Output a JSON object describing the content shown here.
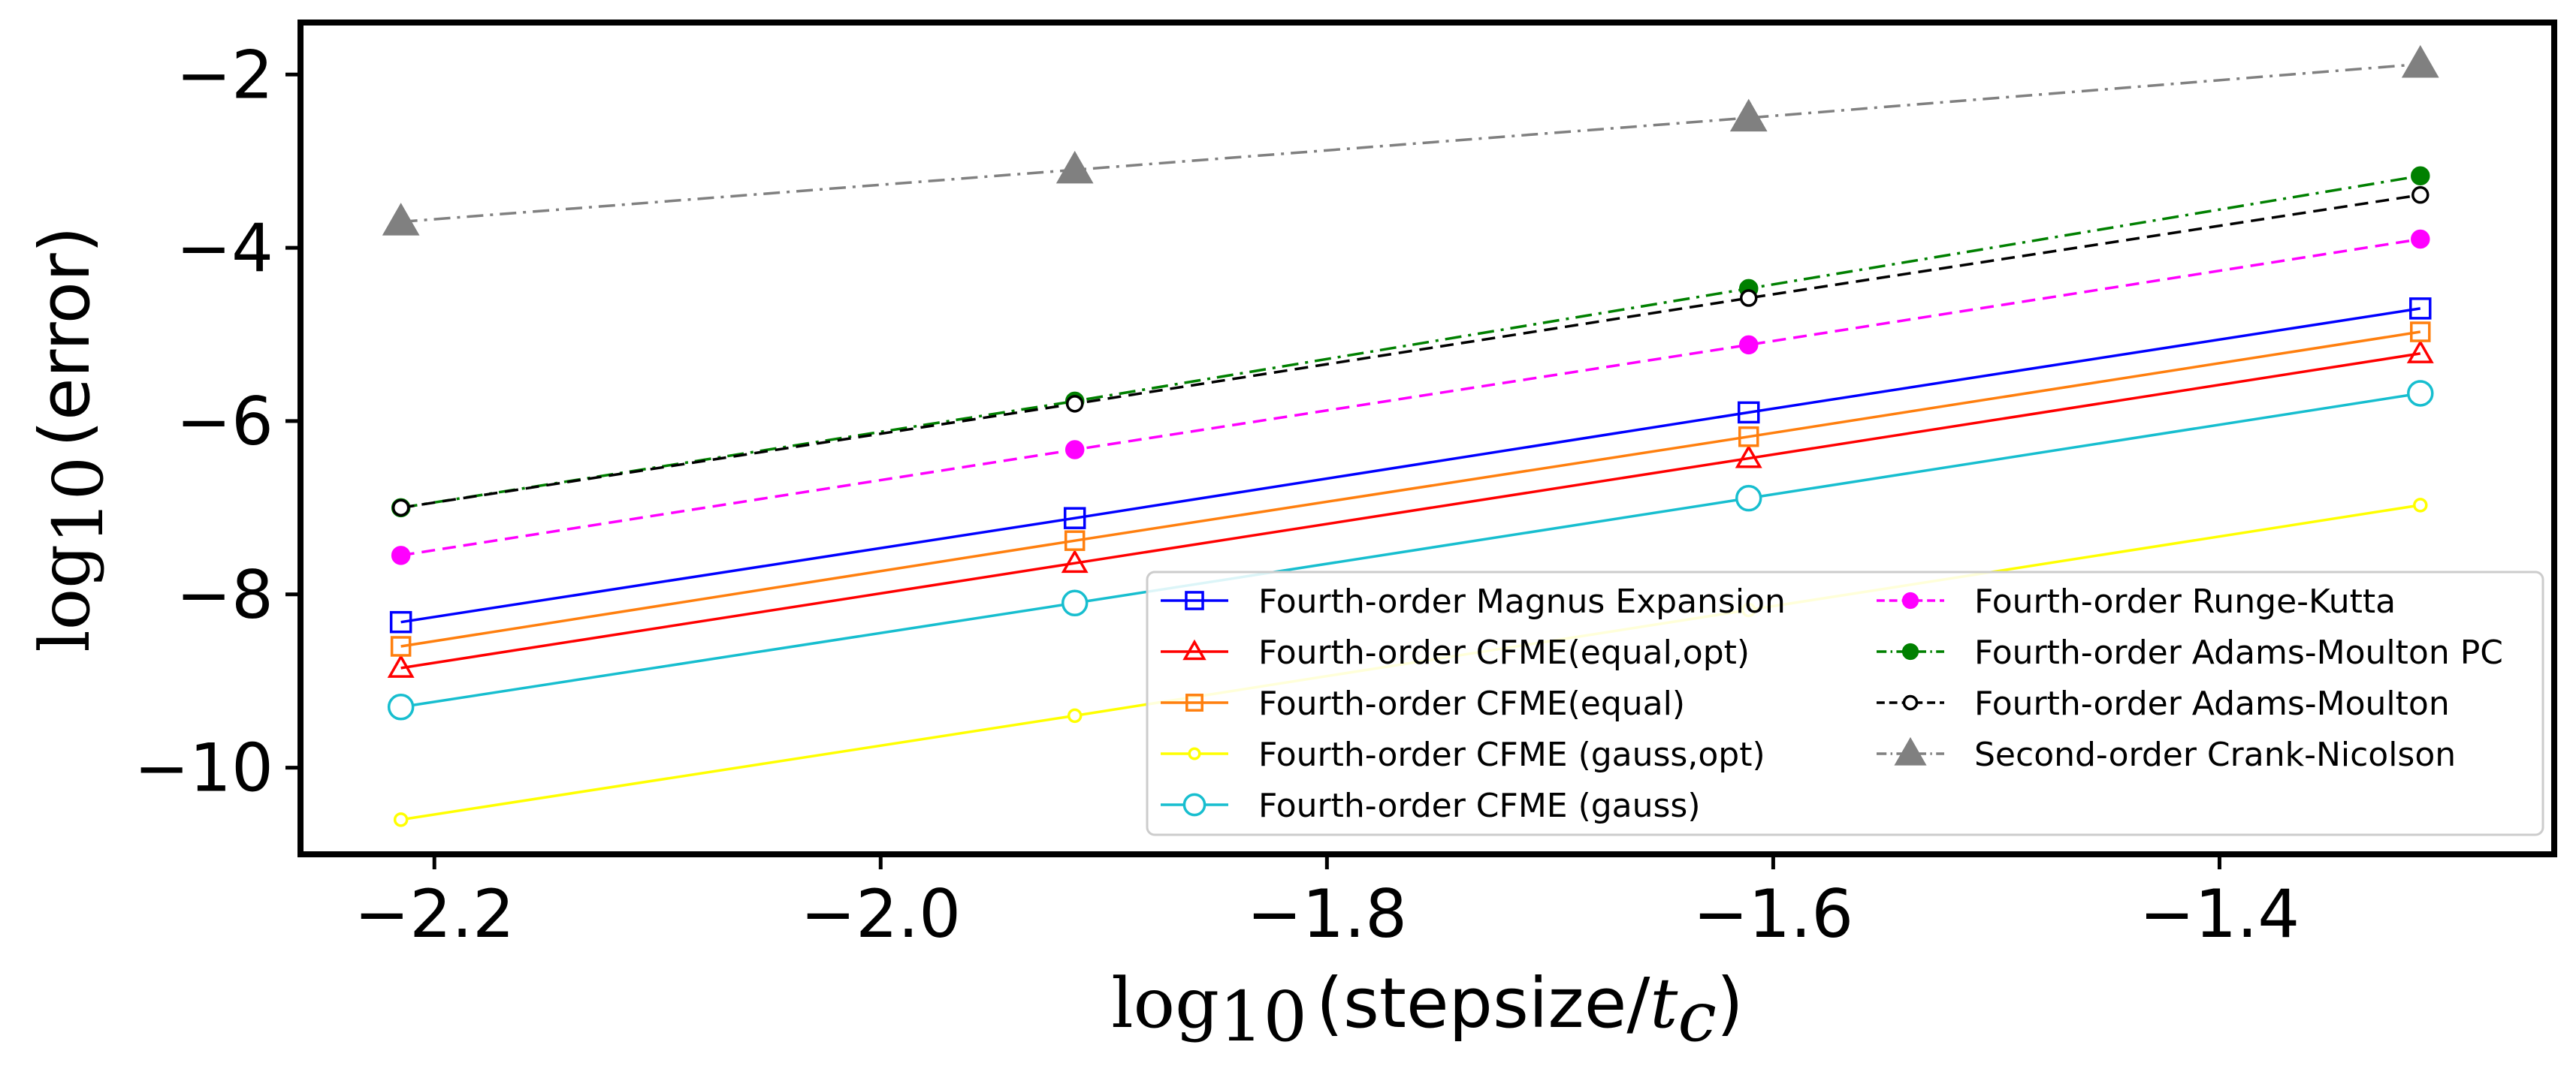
{
  "chart_data": {
    "type": "line",
    "xlabel": {
      "func": "log",
      "sub": "10",
      "text": "(stepsize/",
      "var": "t",
      "varsub": "c",
      "close": ")"
    },
    "ylabel": {
      "func": "log",
      "sub": "10",
      "text": "(error)"
    },
    "xlim": [
      -2.26,
      -1.25
    ],
    "ylim": [
      -11.0,
      -1.4
    ],
    "xticks": [
      -2.2,
      -2.0,
      -1.8,
      -1.6,
      -1.4
    ],
    "xtick_labels": [
      "−2.2",
      "−2.0",
      "−1.8",
      "−1.6",
      "−1.4"
    ],
    "yticks": [
      -10,
      -8,
      -6,
      -4,
      -2
    ],
    "ytick_labels": [
      "−10",
      "−8",
      "−6",
      "−4",
      "−2"
    ],
    "x": [
      -2.215,
      -1.913,
      -1.611,
      -1.31
    ],
    "grid": false,
    "legend_position": "lower-right",
    "legend_columns": 2,
    "series": [
      {
        "name": "Fourth-order Magnus Expansion",
        "values": [
          -8.32,
          -7.12,
          -5.9,
          -4.7
        ],
        "color": "#0000ff",
        "marker": "square",
        "dash": "solid",
        "marker_fill": "none",
        "marker_size": 13
      },
      {
        "name": "Fourth-order CFME(equal,opt)",
        "values": [
          -8.85,
          -7.64,
          -6.43,
          -5.22
        ],
        "color": "#ff0000",
        "marker": "triangle",
        "dash": "solid",
        "marker_fill": "none",
        "marker_size": 13
      },
      {
        "name": "Fourth-order CFME(equal)",
        "values": [
          -8.6,
          -7.38,
          -6.18,
          -4.97
        ],
        "color": "#ff7f0e",
        "marker": "square",
        "dash": "solid",
        "marker_fill": "none",
        "marker_size": 12
      },
      {
        "name": "Fourth-order CFME (gauss,opt)",
        "values": [
          -10.6,
          -9.4,
          -8.18,
          -6.97
        ],
        "color": "#ffff00",
        "marker": "circle",
        "dash": "solid",
        "marker_fill": "none",
        "marker_size": 8
      },
      {
        "name": "Fourth-order CFME (gauss)",
        "values": [
          -9.3,
          -8.1,
          -6.89,
          -5.68
        ],
        "color": "#17becf",
        "marker": "circle",
        "dash": "solid",
        "marker_fill": "none",
        "marker_size": 16
      },
      {
        "name": "Fourth-order Runge-Kutta",
        "values": [
          -7.55,
          -6.33,
          -5.12,
          -3.9
        ],
        "color": "#ff00ff",
        "marker": "circle",
        "dash": "dashed",
        "marker_fill": "filled",
        "marker_size": 11
      },
      {
        "name": "Fourth-order Adams-Moulton PC",
        "values": [
          -7.0,
          -5.77,
          -4.47,
          -3.17
        ],
        "color": "#008000",
        "marker": "circle",
        "dash": "dashdot",
        "marker_fill": "filled",
        "marker_size": 11
      },
      {
        "name": "Fourth-order Adams-Moulton",
        "values": [
          -7.0,
          -5.8,
          -4.58,
          -3.39
        ],
        "color": "#000000",
        "marker": "circle",
        "dash": "dashed",
        "marker_fill": "none",
        "marker_size": 10
      },
      {
        "name": "Second-order Crank-Nicolson",
        "values": [
          -3.7,
          -3.1,
          -2.5,
          -1.88
        ],
        "color": "#808080",
        "marker": "triangle",
        "dash": "dashdot",
        "marker_fill": "filled",
        "marker_size": 19
      }
    ]
  }
}
